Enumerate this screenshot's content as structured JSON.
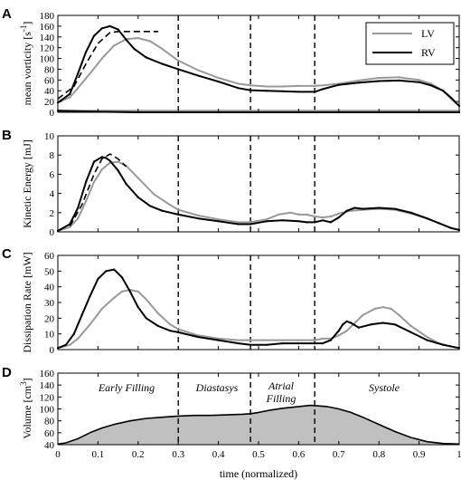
{
  "chart_data": [
    {
      "panel": "A",
      "type": "line",
      "ylabel": "mean vorticity [s",
      "ylabel_sup": "-1",
      "ylabel_end": "]",
      "ylim": [
        0,
        180
      ],
      "yticks": [
        0,
        20,
        40,
        60,
        80,
        100,
        120,
        140,
        160,
        180
      ],
      "xlim": [
        0,
        1
      ],
      "legend": {
        "position": "top-right",
        "entries": [
          "LV",
          "RV"
        ]
      },
      "series": [
        {
          "name": "LV",
          "color": "#999999",
          "x": [
            0,
            0.03,
            0.05,
            0.08,
            0.11,
            0.14,
            0.17,
            0.2,
            0.23,
            0.26,
            0.3,
            0.35,
            0.4,
            0.45,
            0.48,
            0.52,
            0.56,
            0.6,
            0.64,
            0.66,
            0.7,
            0.75,
            0.8,
            0.85,
            0.9,
            0.93,
            0.96,
            0.98,
            1.0
          ],
          "y": [
            18,
            28,
            45,
            72,
            100,
            124,
            136,
            138,
            132,
            118,
            96,
            78,
            64,
            53,
            50,
            48,
            48,
            49,
            49,
            50,
            53,
            59,
            64,
            65,
            60,
            53,
            40,
            25,
            12
          ]
        },
        {
          "name": "RV",
          "color": "#000000",
          "x": [
            0,
            0.03,
            0.05,
            0.07,
            0.09,
            0.11,
            0.13,
            0.15,
            0.17,
            0.19,
            0.22,
            0.26,
            0.3,
            0.35,
            0.4,
            0.45,
            0.48,
            0.52,
            0.56,
            0.6,
            0.64,
            0.66,
            0.7,
            0.75,
            0.8,
            0.85,
            0.9,
            0.93,
            0.96,
            0.98,
            1.0
          ],
          "y": [
            18,
            34,
            72,
            112,
            142,
            156,
            160,
            154,
            135,
            118,
            102,
            90,
            80,
            68,
            57,
            45,
            41,
            40,
            39,
            38,
            38,
            43,
            51,
            55,
            58,
            59,
            56,
            50,
            40,
            27,
            12
          ]
        },
        {
          "name": "",
          "color": "#000000",
          "style": "dashed",
          "x": [
            0.0,
            0.04,
            0.07,
            0.1,
            0.13,
            0.15,
            0.18,
            0.22,
            0.25
          ],
          "y": [
            25,
            48,
            90,
            128,
            148,
            150,
            150,
            150,
            150
          ]
        },
        {
          "name": "",
          "color": "#999999",
          "x": [
            0,
            0.2,
            0.4,
            0.6,
            0.8,
            1.0
          ],
          "y": [
            3,
            3,
            3,
            3,
            3,
            3
          ]
        },
        {
          "name": "",
          "color": "#000000",
          "x": [
            0,
            0.1,
            0.2,
            0.4,
            0.6,
            0.8,
            1.0
          ],
          "y": [
            3,
            1,
            0,
            0,
            0,
            0,
            0
          ]
        }
      ]
    },
    {
      "panel": "B",
      "type": "line",
      "ylabel": "Kinetic Energy [mJ]",
      "ylim": [
        0,
        10
      ],
      "yticks": [
        0,
        2,
        4,
        6,
        8,
        10
      ],
      "xlim": [
        0,
        1
      ],
      "series": [
        {
          "name": "LV",
          "color": "#999999",
          "x": [
            0,
            0.03,
            0.05,
            0.07,
            0.09,
            0.11,
            0.13,
            0.15,
            0.17,
            0.2,
            0.24,
            0.28,
            0.3,
            0.35,
            0.4,
            0.45,
            0.48,
            0.52,
            0.55,
            0.58,
            0.6,
            0.62,
            0.64,
            0.66,
            0.68,
            0.7,
            0.73,
            0.76,
            0.8,
            0.84,
            0.88,
            0.92,
            0.95,
            0.98,
            1.0
          ],
          "y": [
            0.1,
            0.5,
            1.4,
            3.2,
            5.2,
            6.5,
            7.2,
            7.3,
            6.9,
            5.6,
            3.9,
            2.8,
            2.3,
            1.7,
            1.3,
            1.0,
            1.0,
            1.3,
            1.8,
            2.0,
            1.8,
            1.8,
            1.6,
            1.5,
            1.6,
            1.9,
            2.2,
            2.3,
            2.4,
            2.3,
            1.9,
            1.4,
            0.9,
            0.4,
            0.2
          ]
        },
        {
          "name": "RV",
          "color": "#000000",
          "x": [
            0,
            0.03,
            0.05,
            0.07,
            0.09,
            0.11,
            0.12,
            0.13,
            0.15,
            0.17,
            0.2,
            0.23,
            0.26,
            0.3,
            0.35,
            0.4,
            0.45,
            0.48,
            0.52,
            0.56,
            0.6,
            0.62,
            0.64,
            0.66,
            0.68,
            0.7,
            0.72,
            0.74,
            0.76,
            0.8,
            0.84,
            0.88,
            0.92,
            0.95,
            0.98,
            1.0
          ],
          "y": [
            0.1,
            0.8,
            2.5,
            5.2,
            7.3,
            7.8,
            7.7,
            7.4,
            6.4,
            5.0,
            3.6,
            2.7,
            2.2,
            1.8,
            1.4,
            1.1,
            0.8,
            0.8,
            1.1,
            1.2,
            1.1,
            1.0,
            1.0,
            1.2,
            1.0,
            1.5,
            2.2,
            2.5,
            2.4,
            2.5,
            2.4,
            2.0,
            1.4,
            0.9,
            0.4,
            0.2
          ]
        },
        {
          "name": "",
          "color": "#000000",
          "style": "dashed",
          "x": [
            0.03,
            0.06,
            0.09,
            0.11,
            0.13,
            0.15,
            0.17
          ],
          "y": [
            0.6,
            2.8,
            6.0,
            7.6,
            8.1,
            7.6,
            6.8
          ]
        }
      ]
    },
    {
      "panel": "C",
      "type": "line",
      "ylabel": "Dissipation Rate [mW]",
      "ylim": [
        0,
        60
      ],
      "yticks": [
        0,
        10,
        20,
        30,
        40,
        50,
        60
      ],
      "xlim": [
        0,
        1
      ],
      "series": [
        {
          "name": "LV",
          "color": "#999999",
          "x": [
            0,
            0.03,
            0.05,
            0.08,
            0.11,
            0.14,
            0.16,
            0.18,
            0.2,
            0.22,
            0.25,
            0.28,
            0.3,
            0.35,
            0.4,
            0.45,
            0.48,
            0.52,
            0.56,
            0.6,
            0.64,
            0.66,
            0.68,
            0.7,
            0.72,
            0.74,
            0.76,
            0.79,
            0.81,
            0.83,
            0.85,
            0.88,
            0.92,
            0.95,
            0.98,
            1.0
          ],
          "y": [
            1,
            3,
            7,
            16,
            26,
            33,
            37,
            38,
            37,
            32,
            23,
            16,
            13,
            9,
            7,
            6,
            6,
            6,
            6,
            6,
            6,
            7,
            7,
            9,
            12,
            17,
            22,
            26,
            27,
            26,
            22,
            15,
            8,
            4,
            2,
            1
          ]
        },
        {
          "name": "RV",
          "color": "#000000",
          "x": [
            0,
            0.02,
            0.04,
            0.06,
            0.08,
            0.1,
            0.12,
            0.14,
            0.16,
            0.18,
            0.2,
            0.22,
            0.25,
            0.28,
            0.3,
            0.35,
            0.4,
            0.45,
            0.48,
            0.52,
            0.56,
            0.6,
            0.64,
            0.66,
            0.68,
            0.7,
            0.71,
            0.72,
            0.73,
            0.75,
            0.78,
            0.81,
            0.84,
            0.88,
            0.92,
            0.96,
            1.0
          ],
          "y": [
            1,
            3,
            10,
            22,
            34,
            45,
            50,
            51,
            46,
            37,
            27,
            20,
            15,
            12,
            11,
            8,
            6,
            4,
            3,
            3,
            4,
            4,
            4,
            4,
            6,
            12,
            16,
            18,
            17,
            14,
            16,
            17,
            16,
            11,
            6,
            3,
            1
          ]
        }
      ]
    },
    {
      "panel": "D",
      "type": "area",
      "ylabel": "Volume [cm",
      "ylabel_sup": "3",
      "ylabel_end": "]",
      "xlabel": "time (normalized)",
      "ylim": [
        40,
        160
      ],
      "yticks": [
        40,
        60,
        80,
        100,
        120,
        140,
        160
      ],
      "xlim": [
        0,
        1
      ],
      "xticks": [
        "0",
        "0.1",
        "0.2",
        "0.3",
        "0.4",
        "0.5",
        "0.6",
        "0.7",
        "0.8",
        "0.9",
        "1"
      ],
      "xtick_values": [
        0,
        0.1,
        0.2,
        0.3,
        0.4,
        0.5,
        0.6,
        0.7,
        0.8,
        0.9,
        1.0
      ],
      "phase_labels": [
        "Early Filling",
        "Diastasys",
        "Atrial",
        "Filling",
        "Systole"
      ],
      "series": [
        {
          "name": "",
          "color": "#000000",
          "fill": "#c0c0c0",
          "x": [
            0,
            0.02,
            0.05,
            0.08,
            0.11,
            0.14,
            0.18,
            0.22,
            0.26,
            0.3,
            0.34,
            0.38,
            0.42,
            0.46,
            0.48,
            0.5,
            0.53,
            0.56,
            0.6,
            0.63,
            0.65,
            0.67,
            0.7,
            0.73,
            0.76,
            0.8,
            0.84,
            0.88,
            0.92,
            0.96,
            1.0
          ],
          "y": [
            41,
            43,
            50,
            60,
            68,
            74,
            80,
            84,
            86,
            88,
            89,
            89,
            90,
            91,
            92,
            94,
            98,
            101,
            104,
            106,
            105,
            104,
            100,
            94,
            86,
            74,
            62,
            52,
            45,
            42,
            41
          ]
        }
      ]
    }
  ],
  "phase_dividers_x": [
    0.3,
    0.48,
    0.64
  ]
}
